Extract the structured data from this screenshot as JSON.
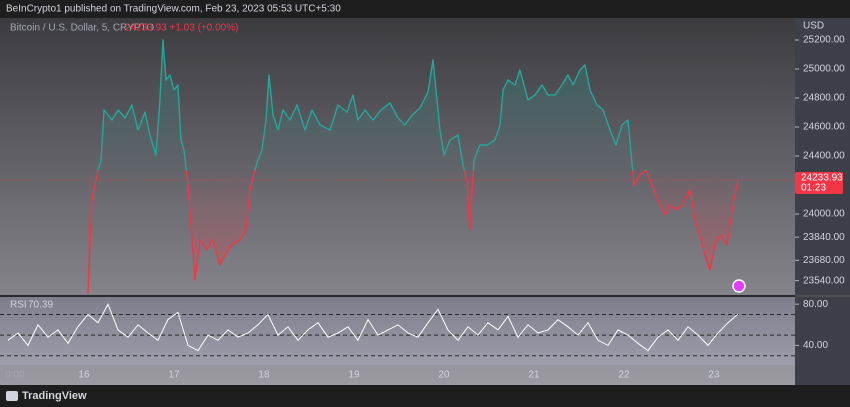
{
  "header": {
    "text": "BeInCrypto1 published on TradingView.com, Feb 23, 2023 05:53 UTC+5:30"
  },
  "footer": {
    "brand": "TradingView"
  },
  "chart_data": [
    {
      "type": "baseline",
      "title": "Bitcoin / U.S. Dollar, 5, CRYPTO",
      "quote": "24233.93 +1.03 (+0.00%)",
      "currency": "USD",
      "countdown": "01:23",
      "baseline": 24300,
      "up_color": "#26a69a",
      "down_color": "#f23645",
      "xlim": [
        15.067,
        23.9
      ],
      "ylim": [
        23448,
        25338
      ],
      "xticks": [
        {
          "value": 15.233,
          "label": "0:00"
        },
        16,
        17,
        18,
        19,
        20,
        21,
        22,
        23
      ],
      "yticks": [
        {
          "value": 25200,
          "label": "25200.00"
        },
        {
          "value": 25000,
          "label": "25000.00"
        },
        {
          "value": 24800,
          "label": "24800.00"
        },
        {
          "value": 24600,
          "label": "24600.00"
        },
        {
          "value": 24400,
          "label": "24400.00"
        },
        {
          "value": 24000,
          "label": "24000.00"
        },
        {
          "value": 23840,
          "label": "23840.00"
        },
        {
          "value": 23680,
          "label": "23680.00"
        },
        {
          "value": 23540,
          "label": "23540.00"
        }
      ],
      "grid": false,
      "x": [
        16.044,
        16.089,
        16.144,
        16.189,
        16.222,
        16.311,
        16.378,
        16.456,
        16.533,
        16.6,
        16.678,
        16.733,
        16.8,
        16.844,
        16.878,
        16.911,
        16.956,
        17.0,
        17.044,
        17.078,
        17.111,
        17.156,
        17.2,
        17.233,
        17.289,
        17.367,
        17.433,
        17.511,
        17.567,
        17.644,
        17.733,
        17.8,
        17.844,
        17.9,
        17.933,
        17.978,
        18.022,
        18.056,
        18.1,
        18.156,
        18.211,
        18.289,
        18.367,
        18.456,
        18.533,
        18.622,
        18.733,
        18.822,
        18.922,
        18.989,
        19.044,
        19.122,
        19.211,
        19.3,
        19.4,
        19.489,
        19.567,
        19.644,
        19.733,
        19.822,
        19.878,
        19.911,
        19.956,
        20.0,
        20.067,
        20.156,
        20.211,
        20.256,
        20.289,
        20.333,
        20.4,
        20.478,
        20.567,
        20.622,
        20.656,
        20.711,
        20.789,
        20.844,
        20.933,
        21.011,
        21.089,
        21.156,
        21.233,
        21.311,
        21.378,
        21.433,
        21.511,
        21.567,
        21.622,
        21.7,
        21.767,
        21.844,
        21.911,
        21.978,
        22.044,
        22.111,
        22.178,
        22.244,
        22.311,
        22.378,
        22.456,
        22.511,
        22.578,
        22.656,
        22.733,
        22.789,
        22.856,
        22.9,
        22.956,
        23.011,
        23.067,
        23.144,
        23.211,
        23.267
      ],
      "values": [
        23448,
        24097,
        24269,
        24372,
        24717,
        24648,
        24717,
        24662,
        24752,
        24579,
        24703,
        24545,
        24407,
        24786,
        25200,
        24924,
        24959,
        24855,
        24890,
        24510,
        24441,
        24200,
        23821,
        23545,
        23821,
        23752,
        23821,
        23648,
        23717,
        23786,
        23821,
        23890,
        24166,
        24303,
        24372,
        24441,
        24648,
        24959,
        24683,
        24579,
        24717,
        24648,
        24752,
        24579,
        24717,
        24614,
        24579,
        24752,
        24703,
        24821,
        24648,
        24717,
        24648,
        24717,
        24766,
        24662,
        24614,
        24683,
        24731,
        24841,
        25062,
        24855,
        24579,
        24407,
        24510,
        24545,
        24338,
        24234,
        23890,
        24372,
        24476,
        24476,
        24510,
        24614,
        24855,
        24924,
        24890,
        24993,
        24786,
        24821,
        24890,
        24821,
        24821,
        24890,
        24959,
        24890,
        24993,
        25028,
        24855,
        24752,
        24717,
        24579,
        24476,
        24614,
        24648,
        24200,
        24269,
        24303,
        24200,
        24097,
        23993,
        24062,
        24028,
        24062,
        24166,
        23959,
        23821,
        23717,
        23614,
        23786,
        23855,
        23786,
        24062,
        24233.93
      ]
    },
    {
      "type": "line",
      "title": "RSI",
      "color": "#ffffff",
      "bands": [
        70,
        50,
        30
      ],
      "xlim": [
        15.067,
        23.9
      ],
      "ylim": [
        21,
        85
      ],
      "yticks": [
        {
          "value": 80,
          "label": "80.00"
        },
        {
          "value": 40,
          "label": "40.00"
        }
      ],
      "x": [
        15.156,
        15.267,
        15.378,
        15.489,
        15.6,
        15.711,
        15.822,
        15.933,
        16.044,
        16.156,
        16.267,
        16.378,
        16.489,
        16.6,
        16.711,
        16.822,
        16.933,
        17.044,
        17.156,
        17.267,
        17.378,
        17.489,
        17.6,
        17.711,
        17.822,
        17.933,
        18.044,
        18.156,
        18.267,
        18.378,
        18.489,
        18.6,
        18.711,
        18.822,
        18.933,
        19.044,
        19.156,
        19.267,
        19.378,
        19.489,
        19.6,
        19.711,
        19.822,
        19.933,
        20.044,
        20.156,
        20.267,
        20.378,
        20.489,
        20.6,
        20.711,
        20.822,
        20.933,
        21.044,
        21.156,
        21.267,
        21.378,
        21.489,
        21.6,
        21.711,
        21.822,
        21.933,
        22.044,
        22.156,
        22.267,
        22.378,
        22.489,
        22.6,
        22.711,
        22.822,
        22.933,
        23.044,
        23.156,
        23.267
      ],
      "values": [
        45,
        52,
        40,
        60,
        48,
        55,
        42,
        58,
        70,
        62,
        80,
        55,
        48,
        60,
        52,
        45,
        65,
        72,
        40,
        35,
        50,
        45,
        55,
        48,
        52,
        60,
        70,
        50,
        58,
        45,
        55,
        62,
        48,
        52,
        58,
        45,
        65,
        50,
        55,
        60,
        52,
        48,
        62,
        75,
        55,
        45,
        58,
        50,
        62,
        55,
        68,
        48,
        60,
        52,
        55,
        65,
        58,
        50,
        62,
        45,
        40,
        55,
        50,
        42,
        35,
        48,
        55,
        45,
        58,
        50,
        40,
        52,
        62,
        70.39
      ]
    }
  ]
}
